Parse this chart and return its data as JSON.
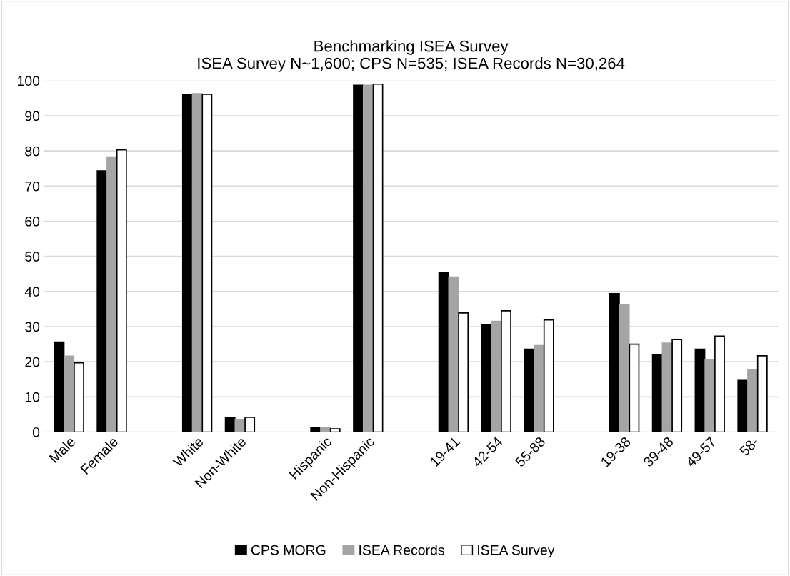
{
  "chart_data": {
    "type": "bar",
    "title": "Benchmarking ISEA Survey\nISEA Survey N~1,600; CPS N=535; ISEA Records N=30,264",
    "categories": [
      "Male",
      "Female",
      null,
      "White",
      "Non-White",
      null,
      "Hispanic",
      "Non-Hispanic",
      null,
      "19-41",
      "42-54",
      "55-88",
      null,
      "19-38",
      "39-48",
      "49-57",
      "58-"
    ],
    "series": [
      {
        "name": "CPS MORG",
        "color": "#000000",
        "values": [
          25.6,
          74.3,
          null,
          96.0,
          4.2,
          null,
          1.2,
          98.7,
          null,
          45.3,
          30.5,
          23.6,
          null,
          39.4,
          22.0,
          23.6,
          14.7
        ]
      },
      {
        "name": "ISEA Records",
        "color": "#a5a5a5",
        "values": [
          21.6,
          78.3,
          null,
          96.3,
          3.5,
          null,
          1.2,
          98.7,
          null,
          44.1,
          31.5,
          24.6,
          null,
          36.2,
          25.3,
          20.6,
          17.7
        ]
      },
      {
        "name": "ISEA Survey",
        "color": "#ffffff",
        "values": [
          19.7,
          80.3,
          null,
          96.1,
          4.2,
          null,
          0.9,
          99.0,
          null,
          33.9,
          34.5,
          31.9,
          null,
          25.0,
          26.3,
          27.3,
          21.7
        ]
      }
    ],
    "ylim": [
      0,
      100
    ],
    "yticks": [
      0,
      10,
      20,
      30,
      40,
      50,
      60,
      70,
      80,
      90,
      100
    ],
    "grid": "y",
    "legend": "bottom"
  }
}
